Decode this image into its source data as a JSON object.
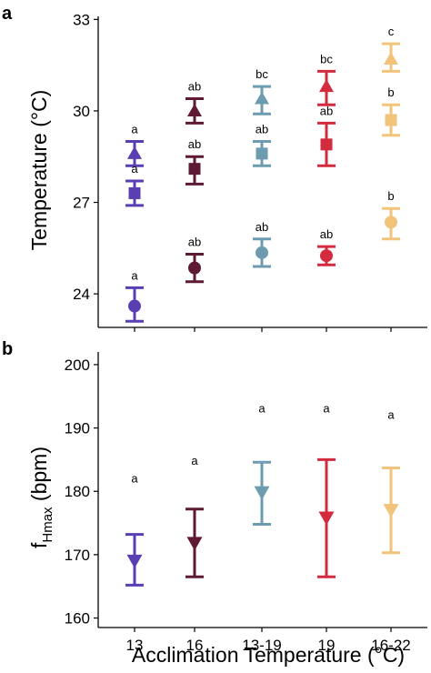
{
  "chart_data": [
    {
      "type": "scatter",
      "panel_label": "a",
      "ylabel": "Temperature (°C)",
      "ylim": [
        22.9,
        33.1
      ],
      "yticks": [
        "24",
        "27",
        "30",
        "33"
      ],
      "categories": [
        "13",
        "16",
        "13-19",
        "19",
        "16-22"
      ],
      "colors": [
        "#5a3fb3",
        "#5e1a35",
        "#6d9bb0",
        "#d42a3e",
        "#f2c37a"
      ],
      "series": [
        {
          "marker": "triangle-up",
          "mean": [
            28.6,
            30.0,
            30.4,
            30.8,
            31.7
          ],
          "lower": [
            28.2,
            29.6,
            29.9,
            30.2,
            31.3
          ],
          "upper": [
            29.0,
            30.4,
            30.8,
            31.3,
            32.2
          ],
          "sig": [
            "a",
            "ab",
            "bc",
            "bc",
            "c"
          ]
        },
        {
          "marker": "square",
          "mean": [
            27.3,
            28.1,
            28.6,
            28.9,
            29.7
          ],
          "lower": [
            26.9,
            27.6,
            28.2,
            28.2,
            29.2
          ],
          "upper": [
            27.7,
            28.5,
            29.0,
            29.6,
            30.2
          ],
          "sig": [
            "a",
            "ab",
            "ab",
            "ab",
            "b"
          ]
        },
        {
          "marker": "circle",
          "mean": [
            23.6,
            24.85,
            25.35,
            25.25,
            26.35
          ],
          "lower": [
            23.1,
            24.4,
            24.9,
            24.95,
            25.8
          ],
          "upper": [
            24.2,
            25.3,
            25.8,
            25.55,
            26.8
          ],
          "sig": [
            "a",
            "ab",
            "ab",
            "ab",
            "b"
          ]
        }
      ]
    },
    {
      "type": "scatter",
      "panel_label": "b",
      "ylabel": "f",
      "ylabel_subscript": "Hmax",
      "ylabel_suffix": " (bpm)",
      "xlabel": "Acclimation Temperature (°C)",
      "ylim": [
        158.5,
        202
      ],
      "yticks": [
        "160",
        "170",
        "180",
        "190",
        "200"
      ],
      "categories": [
        "13",
        "16",
        "13-19",
        "19",
        "16-22"
      ],
      "colors": [
        "#5a3fb3",
        "#5e1a35",
        "#6d9bb0",
        "#d42a3e",
        "#f2c37a"
      ],
      "series": [
        {
          "marker": "triangle-down",
          "mean": [
            169.0,
            171.8,
            179.8,
            175.8,
            177.0
          ],
          "lower": [
            165.2,
            166.5,
            174.8,
            166.5,
            170.3
          ],
          "upper": [
            173.2,
            177.2,
            184.6,
            185.0,
            183.7
          ],
          "sig": [
            "a",
            "a",
            "a",
            "a",
            "a"
          ],
          "sig_y": [
            182.0,
            184.8,
            193.0,
            193.0,
            192.0
          ]
        }
      ]
    }
  ]
}
